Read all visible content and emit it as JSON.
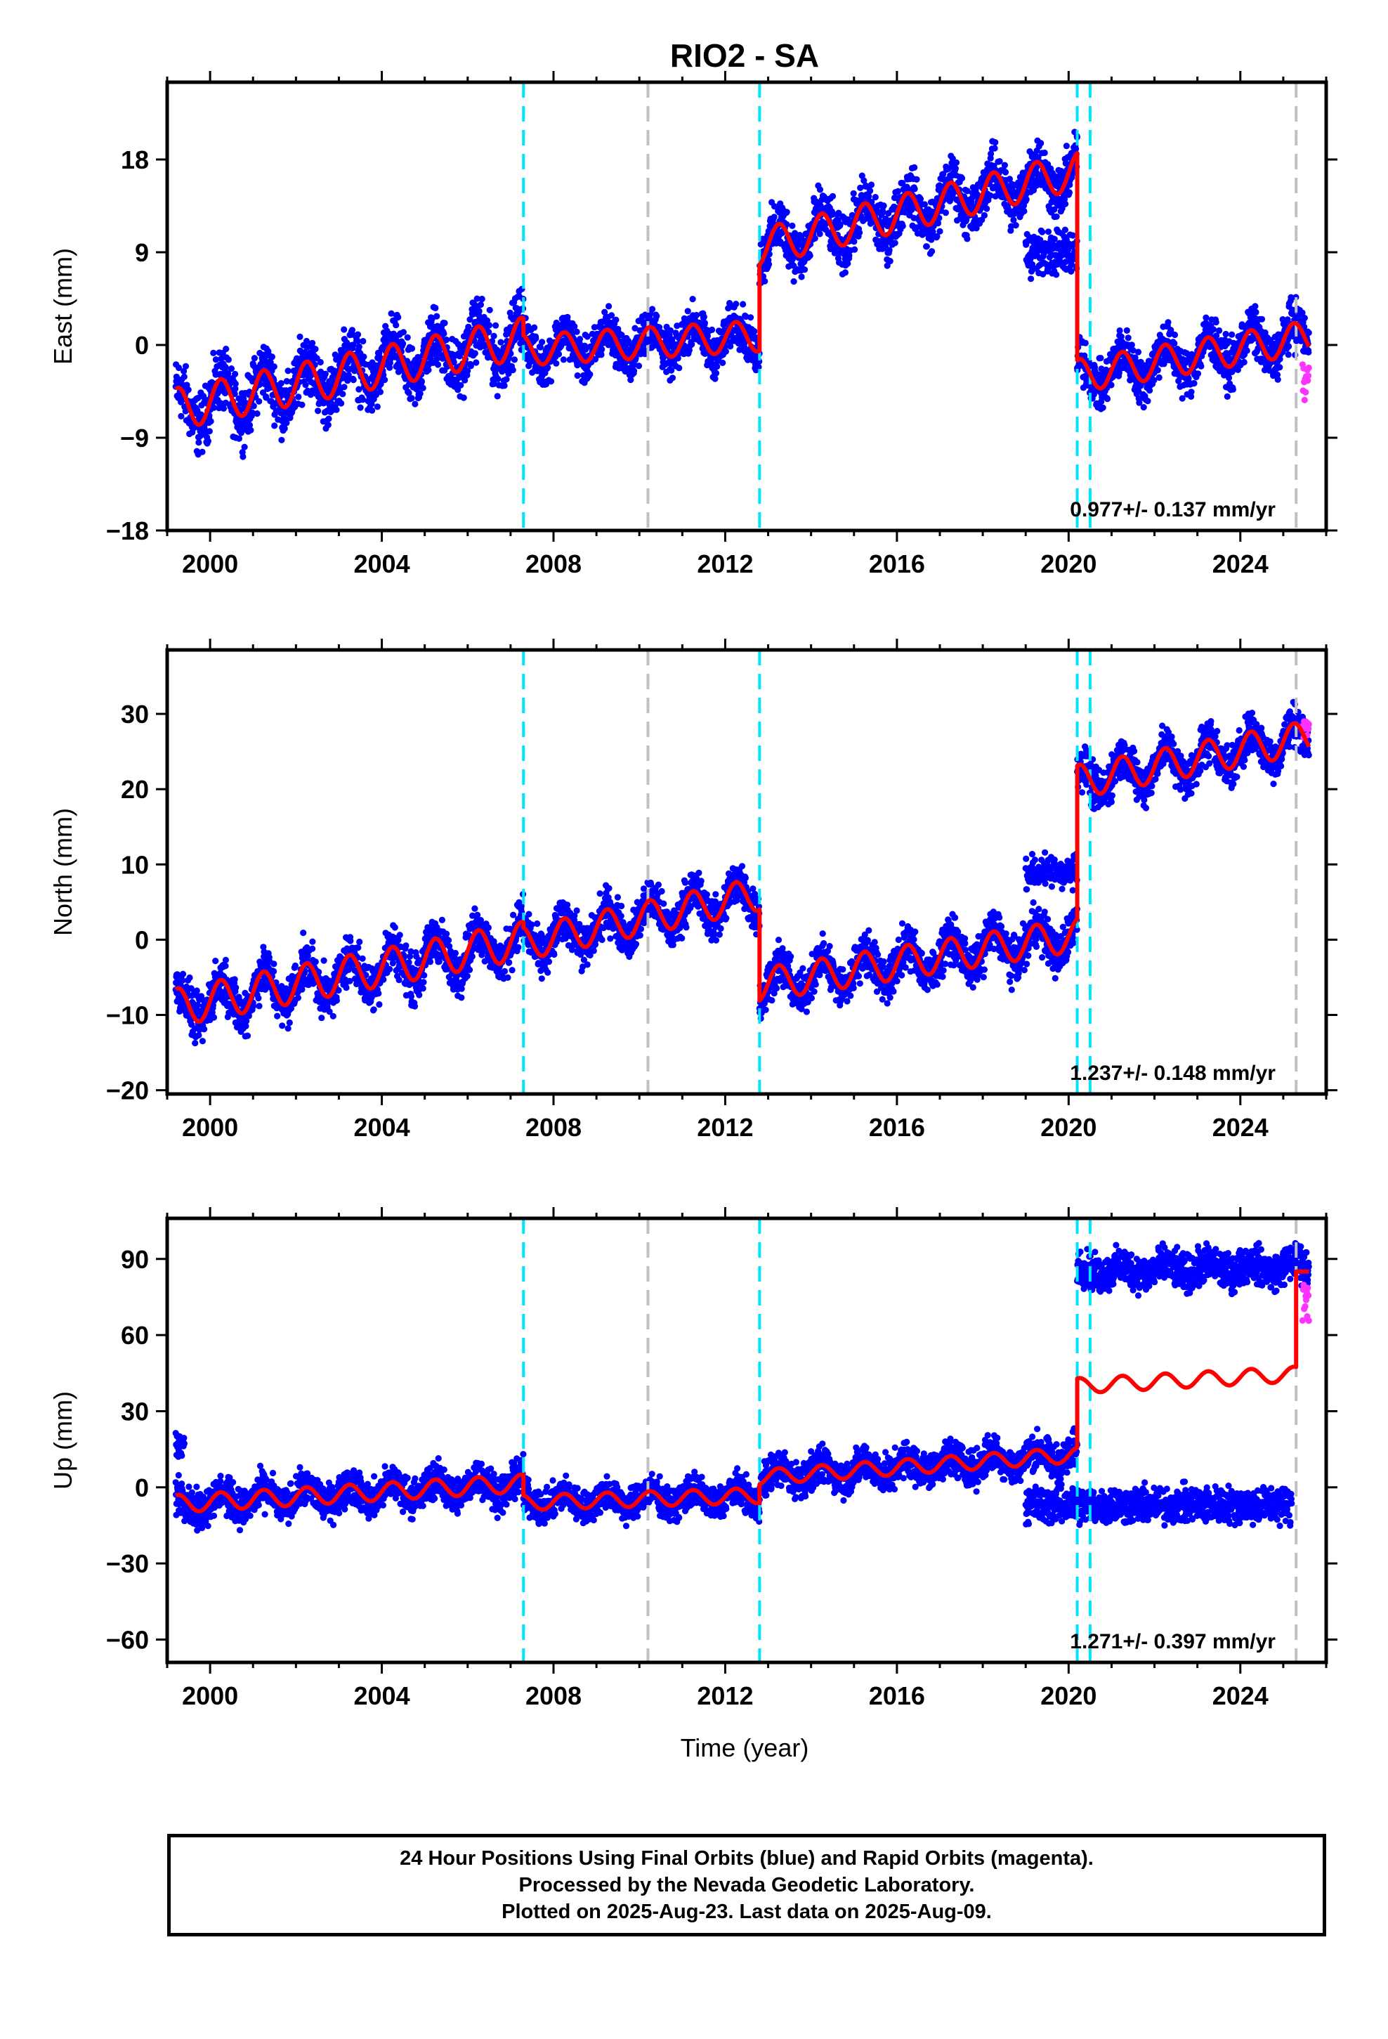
{
  "title": "RIO2 - SA",
  "xlabel": "Time (year)",
  "footer": [
    "24 Hour Positions Using Final Orbits (blue) and Rapid Orbits (magenta).",
    "Processed by the Nevada Geodetic Laboratory.",
    "Plotted on 2025-Aug-23. Last data on 2025-Aug-09."
  ],
  "colors": {
    "final_orbits": "#0000ff",
    "rapid_orbits": "#ff33ff",
    "model": "#ff0000",
    "equipment_change": "#00e5ff",
    "other_event": "#c0c0c0"
  },
  "chart_data": [
    {
      "type": "scatter",
      "panel": "east",
      "ylabel": "East (mm)",
      "xlim": [
        1999.0,
        2026.0
      ],
      "ylim": [
        -18,
        25.5
      ],
      "xticks": [
        2000,
        2004,
        2008,
        2012,
        2016,
        2020,
        2024
      ],
      "yticks": [
        -18,
        -9,
        0,
        9,
        18
      ],
      "rate": "0.977+/- 0.137 mm/yr",
      "events_cyan": [
        2007.3,
        2012.8,
        2020.2,
        2020.5
      ],
      "events_gray": [
        2010.2,
        2025.3
      ],
      "segments": [
        {
          "start": 1999.2,
          "end": 2007.3,
          "y0": -6.2,
          "slope": 0.85,
          "amp": 2.0,
          "scatter": 2.0
        },
        {
          "start": 2007.3,
          "end": 2012.8,
          "y0": -0.5,
          "slope": 0.25,
          "amp": 1.5,
          "scatter": 1.5
        },
        {
          "start": 2012.8,
          "end": 2020.2,
          "y0": 9.5,
          "slope": 1.0,
          "amp": 1.8,
          "scatter": 1.8
        },
        {
          "start": 2020.2,
          "end": 2025.6,
          "y0": -3.0,
          "slope": 0.7,
          "amp": 1.6,
          "scatter": 1.6
        }
      ],
      "offset_cluster": {
        "start": 2019.0,
        "end": 2020.2,
        "y": 9.0,
        "scatter": 1.5
      },
      "rapid": {
        "start": 2025.45,
        "end": 2025.6,
        "y": -3.0,
        "scatter": 2.0
      }
    },
    {
      "type": "scatter",
      "panel": "north",
      "ylabel": "North (mm)",
      "xlim": [
        1999.0,
        2026.0
      ],
      "ylim": [
        -20.5,
        38.5
      ],
      "xticks": [
        2000,
        2004,
        2008,
        2012,
        2016,
        2020,
        2024
      ],
      "yticks": [
        -20,
        -10,
        0,
        10,
        20,
        30
      ],
      "rate": "1.237+/- 0.148 mm/yr",
      "events_cyan": [
        2007.3,
        2012.8,
        2020.2,
        2020.5
      ],
      "events_gray": [
        2010.2,
        2025.3
      ],
      "segments": [
        {
          "start": 1999.2,
          "end": 2007.3,
          "y0": -9.0,
          "slope": 1.1,
          "amp": 2.5,
          "scatter": 2.2
        },
        {
          "start": 2007.3,
          "end": 2012.8,
          "y0": -0.5,
          "slope": 1.2,
          "amp": 2.2,
          "scatter": 2.0
        },
        {
          "start": 2012.8,
          "end": 2020.2,
          "y0": -6.0,
          "slope": 0.9,
          "amp": 2.2,
          "scatter": 2.0
        },
        {
          "start": 2020.2,
          "end": 2025.6,
          "y0": 21.0,
          "slope": 1.1,
          "amp": 2.2,
          "scatter": 2.0
        }
      ],
      "offset_cluster": {
        "start": 2019.0,
        "end": 2020.2,
        "y": 9.0,
        "scatter": 1.5
      },
      "rapid": {
        "start": 2025.45,
        "end": 2025.6,
        "y": 28.0,
        "scatter": 1.2
      }
    },
    {
      "type": "scatter",
      "panel": "up",
      "ylabel": "Up (mm)",
      "xlim": [
        1999.0,
        2026.0
      ],
      "ylim": [
        -69,
        106
      ],
      "xticks": [
        2000,
        2004,
        2008,
        2012,
        2016,
        2020,
        2024
      ],
      "yticks": [
        -60,
        -30,
        0,
        30,
        60,
        90
      ],
      "rate": "1.271+/- 0.397 mm/yr",
      "events_cyan": [
        2007.3,
        2012.8,
        2020.2,
        2020.5
      ],
      "events_gray": [
        2010.2,
        2025.3
      ],
      "segments": [
        {
          "start": 1999.2,
          "end": 2007.3,
          "y0": -6.5,
          "slope": 1.0,
          "amp": 3.5,
          "scatter": 5.0
        },
        {
          "start": 2007.3,
          "end": 2012.8,
          "y0": -6.0,
          "slope": 0.5,
          "amp": 3.0,
          "scatter": 4.5
        },
        {
          "start": 2012.8,
          "end": 2020.2,
          "y0": 4.0,
          "slope": 1.2,
          "amp": 3.0,
          "scatter": 5.0
        }
      ],
      "model_tail": [
        {
          "start": 2020.2,
          "end": 2025.3,
          "y0": 40.0,
          "slope": 0.9,
          "amp": 3.0
        },
        {
          "start": 2025.3,
          "end": 2025.6,
          "y0": 85.0,
          "slope": 0.0,
          "amp": 0.0
        }
      ],
      "high_cluster": {
        "start": 2020.2,
        "end": 2025.6,
        "y": 85.0,
        "slope": 0.4,
        "scatter": 5.0
      },
      "low_cluster": {
        "start": 2019.0,
        "end": 2025.2,
        "y": -7.0,
        "slope": 0.0,
        "scatter": 5.0
      },
      "early_outliers": {
        "start": 1999.2,
        "end": 1999.4,
        "y": 18.0,
        "scatter": 5.0
      },
      "rapid": {
        "start": 2025.45,
        "end": 2025.6,
        "y": 74.0,
        "scatter": 7.0
      }
    }
  ]
}
